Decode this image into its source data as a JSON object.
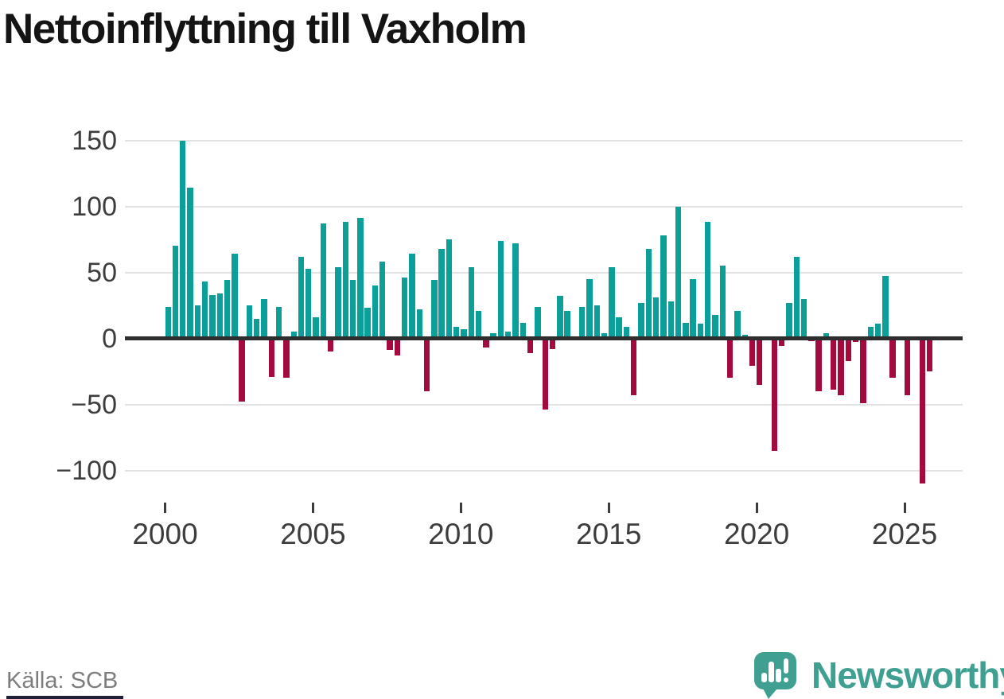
{
  "title": "Nettoinflyttning till Vaxholm",
  "source": "Källa: SCB",
  "branding": {
    "logo_text": "Newsworthy",
    "logo_icon": "bar-chart-speech-bubble-icon",
    "brand_color": "#3fa091"
  },
  "chart_data": {
    "type": "bar",
    "title": "Nettoinflyttning till Vaxholm",
    "xlabel": "",
    "ylabel": "",
    "frequency": "quarterly",
    "start_period": "2000-Q1",
    "end_period": "2025-Q4",
    "grid": true,
    "legend": "none",
    "ylim": [
      -125,
      160
    ],
    "y_ticks": [
      {
        "label": "150",
        "value": 150
      },
      {
        "label": "100",
        "value": 100
      },
      {
        "label": "50",
        "value": 50
      },
      {
        "label": "0",
        "value": 0
      },
      {
        "label": "−50",
        "value": -50
      },
      {
        "label": "−100",
        "value": -100
      }
    ],
    "x_ticks": [
      {
        "label": "2000",
        "year": 2000
      },
      {
        "label": "2005",
        "year": 2005
      },
      {
        "label": "2010",
        "year": 2010
      },
      {
        "label": "2015",
        "year": 2015
      },
      {
        "label": "2020",
        "year": 2020
      },
      {
        "label": "2025",
        "year": 2025
      }
    ],
    "colors": {
      "positive": "#0a9f99",
      "negative": "#a40a3c"
    },
    "series": [
      {
        "name": "Nettoinflyttning",
        "values": [
          24,
          70,
          150,
          114,
          25,
          43,
          33,
          34,
          44,
          64,
          -48,
          25,
          15,
          30,
          -29,
          24,
          -30,
          5,
          62,
          53,
          16,
          87,
          -10,
          54,
          88,
          44,
          91,
          23,
          40,
          58,
          -9,
          -13,
          46,
          64,
          22,
          -40,
          44,
          68,
          75,
          9,
          7,
          54,
          21,
          -7,
          4,
          74,
          5,
          72,
          12,
          -11,
          24,
          -54,
          -8,
          32,
          21,
          0,
          24,
          45,
          25,
          4,
          54,
          16,
          9,
          -43,
          27,
          68,
          31,
          78,
          28,
          100,
          12,
          45,
          11,
          88,
          18,
          55,
          -30,
          21,
          3,
          -21,
          -35,
          0,
          -85,
          -6,
          27,
          62,
          30,
          -2,
          -40,
          4,
          -39,
          -43,
          -17,
          -3,
          -49,
          9,
          11,
          47,
          -30,
          0,
          -43,
          0,
          -110,
          -25
        ]
      }
    ]
  }
}
